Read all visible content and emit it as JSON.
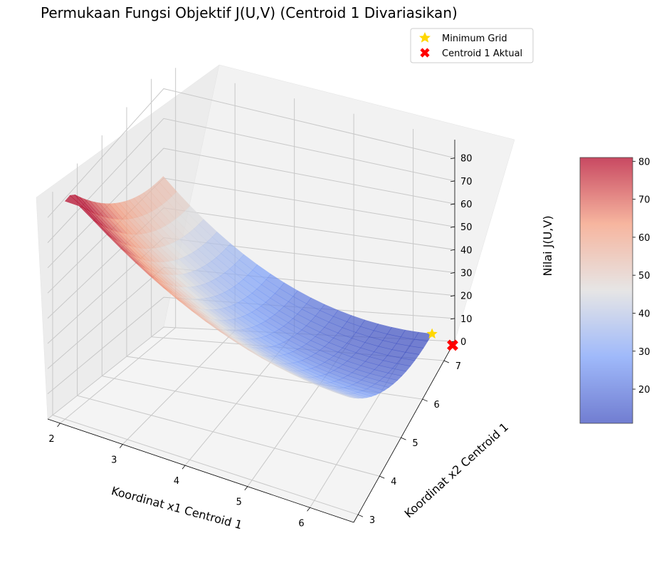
{
  "chart_data": {
    "type": "surface3d",
    "title": "Permukaan Fungsi Objektif J(U,V) (Centroid 1 Divariasikan)",
    "xlabel": "Koordinat x1 Centroid 1",
    "ylabel": "Koordinat x2 Centroid 1",
    "zlabel": "Nilai J(U,V)",
    "x_ticks": [
      "2",
      "3",
      "4",
      "5",
      "6"
    ],
    "y_ticks": [
      "3",
      "4",
      "5",
      "6",
      "7"
    ],
    "z_ticks": [
      "0",
      "10",
      "20",
      "30",
      "40",
      "50",
      "60",
      "70",
      "80"
    ],
    "xlim": [
      1.8,
      6.7
    ],
    "ylim": [
      2.8,
      7.5
    ],
    "zlim": [
      0,
      88
    ],
    "surface": {
      "x_range": [
        2,
        6.5
      ],
      "y_range": [
        3,
        7
      ],
      "min_point": {
        "x": 6.5,
        "y": 7,
        "z": 11
      },
      "max_value": 80,
      "colormap": "coolwarm",
      "alpha": 0.7
    },
    "markers": [
      {
        "name": "Minimum Grid",
        "x": 6.5,
        "y": 7,
        "z": 11,
        "marker": "star",
        "color": "#FFD700"
      },
      {
        "name": "Centroid 1 Aktual",
        "x": 6.7,
        "y": 7.4,
        "z": 0,
        "marker": "X",
        "color": "#FF0000"
      }
    ],
    "legend": {
      "location": "top-right",
      "entries": [
        "Minimum Grid",
        "Centroid 1 Aktual"
      ]
    },
    "colorbar": {
      "ticks": [
        "20",
        "30",
        "40",
        "50",
        "60",
        "70",
        "80"
      ],
      "range": [
        11,
        81
      ],
      "colormap": "coolwarm"
    },
    "grid": true
  }
}
